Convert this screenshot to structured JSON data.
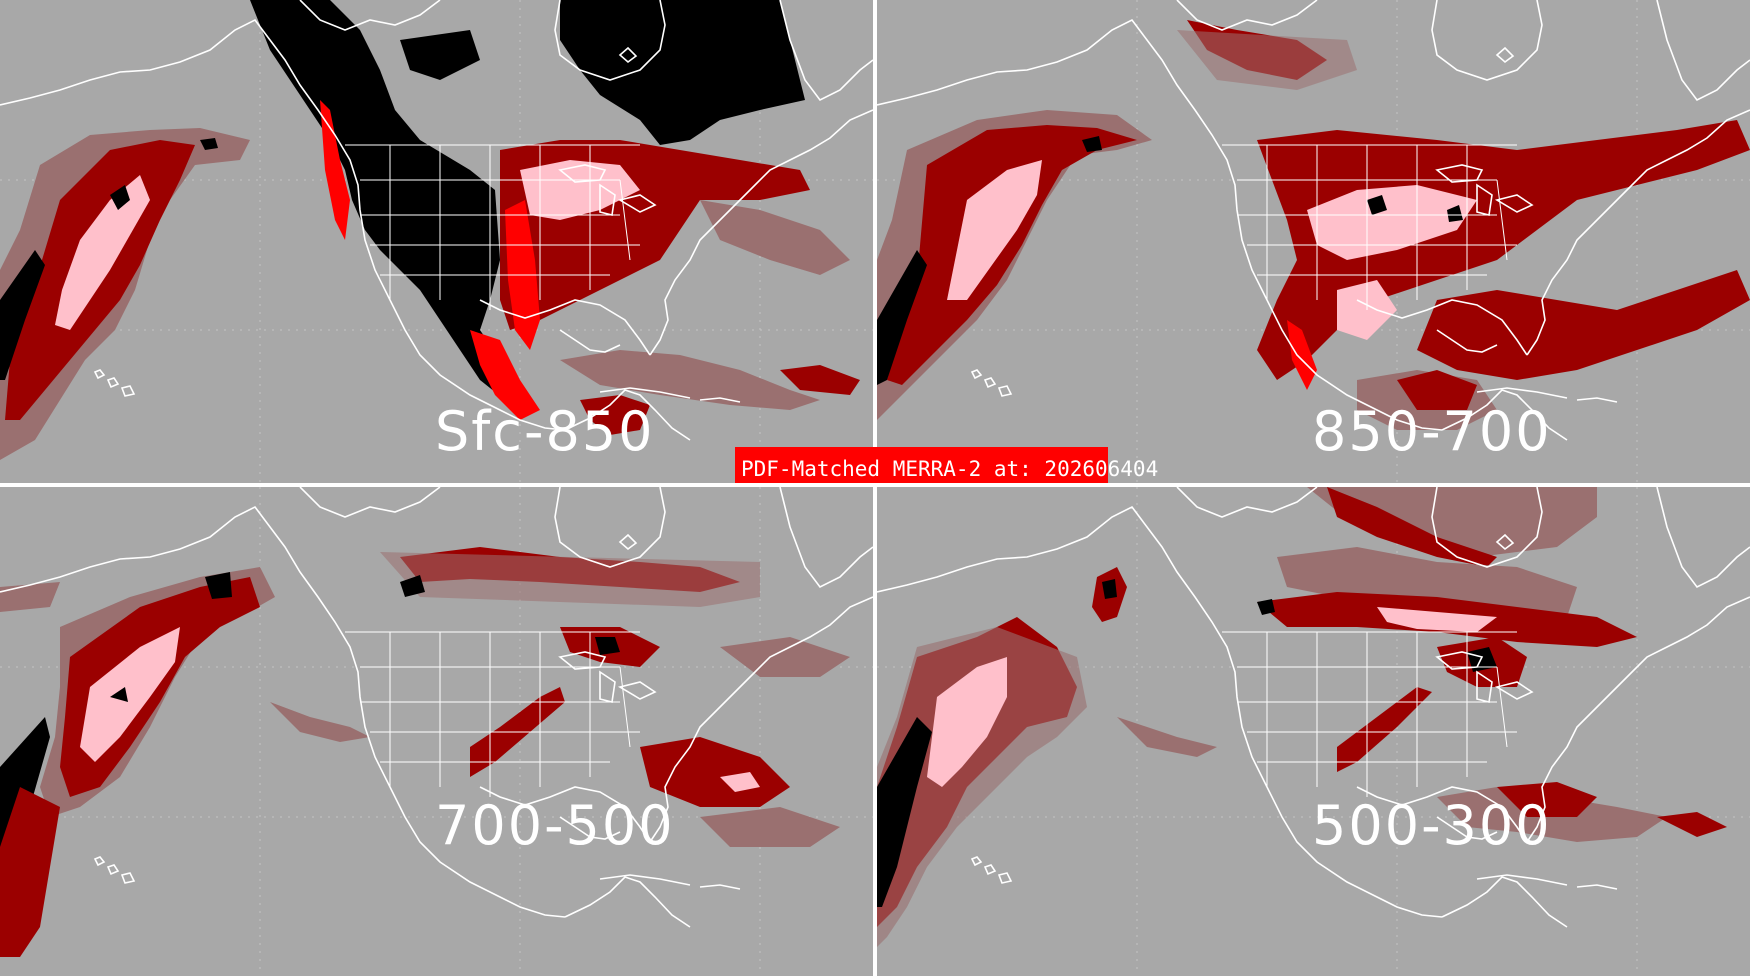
{
  "banner": {
    "text": "PDF-Matched MERRA-2 at: 202606404"
  },
  "panels": [
    {
      "label": "Sfc-850"
    },
    {
      "label": "850-700"
    },
    {
      "label": "700-500"
    },
    {
      "label": "500-300"
    }
  ],
  "colors": {
    "background": "#a8a8a8",
    "low": "#9a7070",
    "medium": "#9b0000",
    "high": "#ffc0cb",
    "max": "#ff0000",
    "undefined": "#000000",
    "lines": "#ffffff"
  }
}
